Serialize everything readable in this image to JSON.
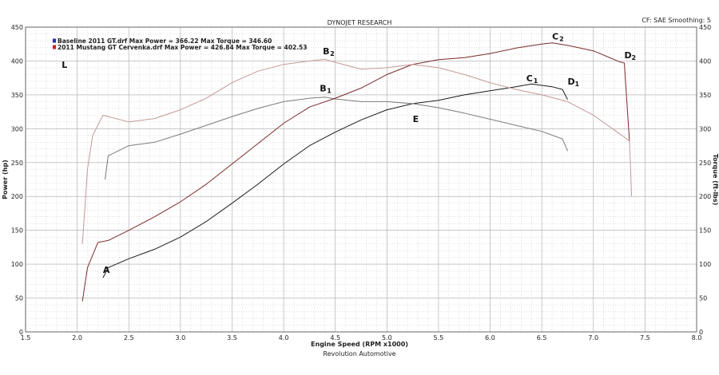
{
  "header": {
    "title": "DYNOJET RESEARCH",
    "settings": "CF: SAE  Smoothing: 5"
  },
  "footer": {
    "company": "Revolution Automotive"
  },
  "legend": [
    {
      "text": "Baseline 2011 GT.drf Max Power = 366.22      Max Torque = 346.60",
      "color": "#2233aa"
    },
    {
      "text": "2011 Mustang GT Cervenka.drf Max Power = 426.84      Max Torque = 402.53",
      "color": "#cc2222"
    }
  ],
  "colors": {
    "baseline_power": "#1a1a1a",
    "baseline_torque": "#7a7a7a",
    "modified_power": "#7a2a2a",
    "modified_torque": "#c49898",
    "grid": "#a8a8a8"
  },
  "annotations": [
    {
      "letter": "A",
      "sub": "",
      "x": 2.25,
      "y": 87
    },
    {
      "letter": "B",
      "sub": "1",
      "x": 4.35,
      "y": 355
    },
    {
      "letter": "B",
      "sub": "2",
      "x": 4.38,
      "y": 410
    },
    {
      "letter": "C",
      "sub": "1",
      "x": 6.35,
      "y": 370
    },
    {
      "letter": "C",
      "sub": "2",
      "x": 6.6,
      "y": 432
    },
    {
      "letter": "D",
      "sub": "1",
      "x": 6.75,
      "y": 365
    },
    {
      "letter": "D",
      "sub": "2",
      "x": 7.3,
      "y": 404
    },
    {
      "letter": "E",
      "sub": "",
      "x": 5.25,
      "y": 310
    },
    {
      "letter": "L",
      "sub": "",
      "x": 1.85,
      "y": 390
    }
  ],
  "chart_data": {
    "type": "line",
    "title": "DYNOJET RESEARCH",
    "xlabel": "Engine Speed (RPM x1000)",
    "ylabel": "Power (hp)",
    "y2label": "Torque (ft-lbs)",
    "xlim": [
      1.5,
      8.0
    ],
    "ylim": [
      0,
      450
    ],
    "y2lim": [
      0,
      450
    ],
    "x_ticks": [
      "1.5",
      "2.0",
      "2.5",
      "3.0",
      "3.5",
      "4.0",
      "4.5",
      "5.0",
      "5.5",
      "6.0",
      "6.5",
      "7.0",
      "7.5",
      "8.0"
    ],
    "y_ticks": [
      "0",
      "50",
      "100",
      "150",
      "200",
      "250",
      "300",
      "350",
      "400",
      "450"
    ],
    "grid": true,
    "series": [
      {
        "name": "Baseline 2011 GT.drf Power",
        "axis": "left",
        "points": [
          [
            2.25,
            80
          ],
          [
            2.3,
            95
          ],
          [
            2.5,
            108
          ],
          [
            2.75,
            122
          ],
          [
            3.0,
            140
          ],
          [
            3.25,
            163
          ],
          [
            3.5,
            190
          ],
          [
            3.75,
            218
          ],
          [
            4.0,
            248
          ],
          [
            4.25,
            275
          ],
          [
            4.5,
            295
          ],
          [
            4.75,
            313
          ],
          [
            5.0,
            328
          ],
          [
            5.25,
            337
          ],
          [
            5.5,
            342
          ],
          [
            5.75,
            350
          ],
          [
            6.0,
            356
          ],
          [
            6.25,
            362
          ],
          [
            6.4,
            366
          ],
          [
            6.5,
            364
          ],
          [
            6.6,
            362
          ],
          [
            6.7,
            358
          ],
          [
            6.75,
            343
          ]
        ]
      },
      {
        "name": "Baseline 2011 GT.drf Torque",
        "axis": "right",
        "points": [
          [
            2.27,
            225
          ],
          [
            2.3,
            260
          ],
          [
            2.5,
            275
          ],
          [
            2.75,
            280
          ],
          [
            3.0,
            292
          ],
          [
            3.25,
            305
          ],
          [
            3.5,
            318
          ],
          [
            3.75,
            330
          ],
          [
            4.0,
            340
          ],
          [
            4.25,
            345
          ],
          [
            4.4,
            346.6
          ],
          [
            4.5,
            344
          ],
          [
            4.75,
            340
          ],
          [
            5.0,
            340
          ],
          [
            5.25,
            337
          ],
          [
            5.5,
            331
          ],
          [
            5.75,
            323
          ],
          [
            6.0,
            314
          ],
          [
            6.25,
            305
          ],
          [
            6.5,
            296
          ],
          [
            6.7,
            285
          ],
          [
            6.75,
            267
          ]
        ]
      },
      {
        "name": "2011 Mustang GT Cervenka.drf Power",
        "axis": "left",
        "points": [
          [
            2.05,
            45
          ],
          [
            2.1,
            95
          ],
          [
            2.2,
            132
          ],
          [
            2.3,
            135
          ],
          [
            2.5,
            150
          ],
          [
            2.75,
            170
          ],
          [
            3.0,
            192
          ],
          [
            3.25,
            218
          ],
          [
            3.5,
            248
          ],
          [
            3.75,
            278
          ],
          [
            4.0,
            308
          ],
          [
            4.25,
            332
          ],
          [
            4.5,
            345
          ],
          [
            4.75,
            360
          ],
          [
            5.0,
            380
          ],
          [
            5.25,
            395
          ],
          [
            5.5,
            402
          ],
          [
            5.75,
            405
          ],
          [
            6.0,
            411
          ],
          [
            6.25,
            419
          ],
          [
            6.5,
            425
          ],
          [
            6.6,
            426.8
          ],
          [
            6.75,
            423
          ],
          [
            7.0,
            415
          ],
          [
            7.25,
            399
          ],
          [
            7.3,
            397
          ],
          [
            7.35,
            280
          ]
        ]
      },
      {
        "name": "2011 Mustang GT Cervenka.drf Torque",
        "axis": "right",
        "points": [
          [
            2.05,
            130
          ],
          [
            2.1,
            240
          ],
          [
            2.15,
            290
          ],
          [
            2.25,
            320
          ],
          [
            2.5,
            310
          ],
          [
            2.75,
            315
          ],
          [
            3.0,
            328
          ],
          [
            3.25,
            345
          ],
          [
            3.5,
            368
          ],
          [
            3.75,
            385
          ],
          [
            4.0,
            395
          ],
          [
            4.25,
            400
          ],
          [
            4.4,
            402.5
          ],
          [
            4.5,
            398
          ],
          [
            4.75,
            388
          ],
          [
            5.0,
            390
          ],
          [
            5.25,
            395
          ],
          [
            5.5,
            390
          ],
          [
            5.75,
            380
          ],
          [
            6.0,
            368
          ],
          [
            6.25,
            358
          ],
          [
            6.5,
            350
          ],
          [
            6.75,
            340
          ],
          [
            7.0,
            320
          ],
          [
            7.25,
            293
          ],
          [
            7.35,
            282
          ],
          [
            7.37,
            200
          ]
        ]
      }
    ]
  }
}
